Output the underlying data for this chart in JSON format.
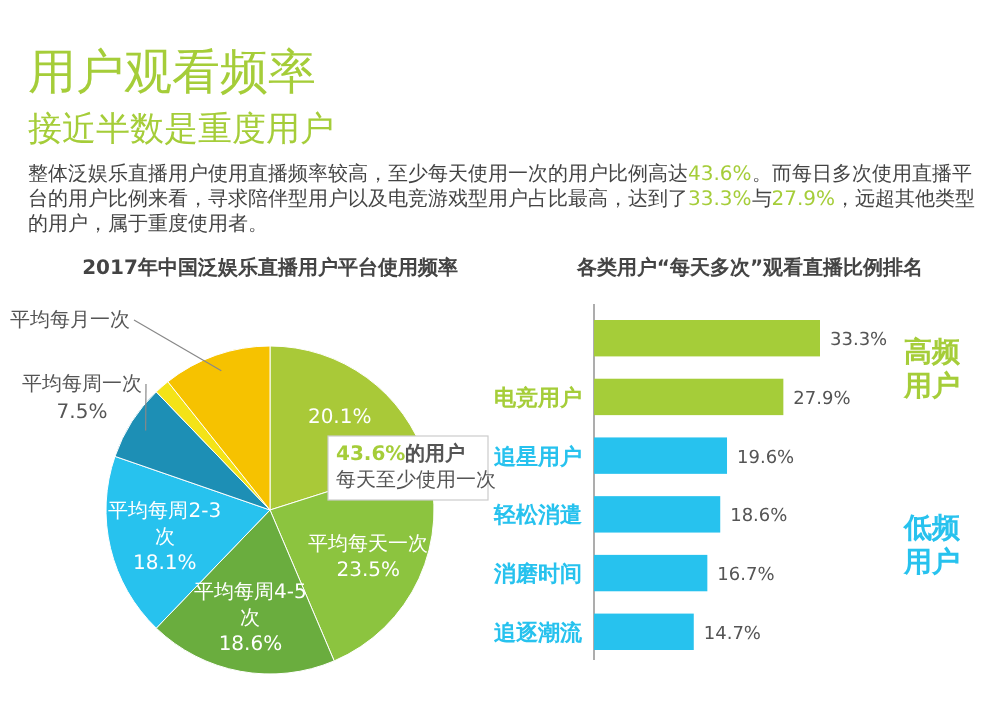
{
  "chart_data": [
    {
      "type": "other",
      "title": "用户观看频率",
      "subtitle": "接近半数是重度用户",
      "annotations": [
        "整体泛娱乐直播用户使用直播频率较高，至少每天使用一次的用户比例高达43.6%。而每日多次使用直播平台的用户比例来看，寻求陪伴型用户以及电竞游戏型用户占比最高，达到了33.3%与27.9%，远超其他类型的用户，属于重度使用者。"
      ]
    },
    {
      "type": "pie",
      "title": "2017年中国泛娱乐直播用户平台使用频率",
      "categories": [
        null,
        "平均每天一次",
        "平均每周4-5次",
        "平均每周2-3次",
        "平均每周一次",
        null,
        "平均每月一次"
      ],
      "values": [
        20.1,
        23.5,
        18.6,
        18.1,
        7.5,
        1.5,
        10.7
      ],
      "colors": [
        "#a9c938",
        "#8cc43f",
        "#6aad3e",
        "#27c2ee",
        "#1d8fb5",
        "#f4e317",
        "#f6c200"
      ],
      "value_labels": [
        "20.1%",
        "23.5%",
        "18.6%",
        "18.1%",
        "7.5%",
        null,
        null
      ],
      "annotations": [
        "43.6%的用户",
        "每天至少使用一次"
      ]
    },
    {
      "type": "bar",
      "orientation": "horizontal",
      "title": "各类用户“每天多次”观看直播比例排名",
      "categories": [
        null,
        "电竞用户",
        "追星用户",
        "轻松消遣",
        "消磨时间",
        "追逐潮流"
      ],
      "values": [
        33.3,
        27.9,
        19.6,
        18.6,
        16.7,
        14.7
      ],
      "colors": [
        "#a5cd39",
        "#a5cd39",
        "#27c2ee",
        "#27c2ee",
        "#27c2ee",
        "#27c2ee"
      ],
      "value_labels": [
        "33.3%",
        "27.9%",
        "19.6%",
        "18.6%",
        "16.7%",
        "14.7%"
      ],
      "annotations": [
        "高频用户",
        "低频用户"
      ]
    }
  ]
}
